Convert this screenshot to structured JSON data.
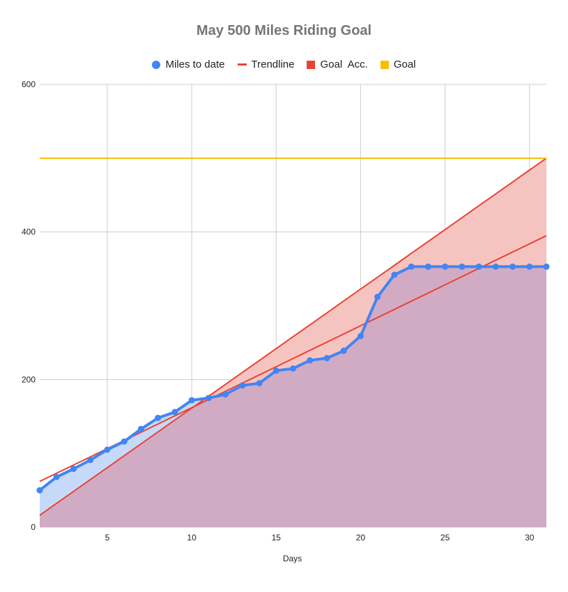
{
  "chart_data": {
    "type": "line",
    "title": "May 500 Miles Riding Goal",
    "xlabel": "Days",
    "ylabel": "",
    "xlim": [
      1,
      31
    ],
    "ylim": [
      0,
      600
    ],
    "x_ticks": [
      5,
      10,
      15,
      20,
      25,
      30
    ],
    "y_ticks": [
      0,
      200,
      400,
      600
    ],
    "grid": true,
    "legend_position": "top",
    "x": [
      1,
      2,
      3,
      4,
      5,
      6,
      7,
      8,
      9,
      10,
      11,
      12,
      13,
      14,
      15,
      16,
      17,
      18,
      19,
      20,
      21,
      22,
      23,
      24,
      25,
      26,
      27,
      28,
      29,
      30,
      31
    ],
    "series": [
      {
        "name": "Miles to date",
        "kind": "line-with-markers-area",
        "color": "#4285f4",
        "fill_color": "#c6d9f9",
        "values": [
          50,
          68,
          79,
          91,
          105,
          116,
          133,
          148,
          156,
          172,
          175,
          180,
          192,
          195,
          212,
          215,
          226,
          229,
          239,
          259,
          312,
          342,
          353,
          353,
          353,
          353,
          353,
          353,
          353,
          353,
          353
        ]
      },
      {
        "name": "Trendline",
        "kind": "linear-trendline",
        "color": "#ea4335",
        "start": [
          1,
          62
        ],
        "end": [
          31,
          395
        ]
      },
      {
        "name": "Goal  Acc.",
        "kind": "area",
        "color": "#ea4335",
        "fill_color": "#f6c4c0",
        "values": [
          16.1,
          32.3,
          48.4,
          64.5,
          80.6,
          96.8,
          112.9,
          129.0,
          145.2,
          161.3,
          177.4,
          193.5,
          209.7,
          225.8,
          241.9,
          258.1,
          274.2,
          290.3,
          306.5,
          322.6,
          338.7,
          354.8,
          371.0,
          387.1,
          403.2,
          419.4,
          435.5,
          451.6,
          467.7,
          483.9,
          500
        ]
      },
      {
        "name": "Goal",
        "kind": "line",
        "color": "#fbbc04",
        "values": [
          500,
          500,
          500,
          500,
          500,
          500,
          500,
          500,
          500,
          500,
          500,
          500,
          500,
          500,
          500,
          500,
          500,
          500,
          500,
          500,
          500,
          500,
          500,
          500,
          500,
          500,
          500,
          500,
          500,
          500,
          500
        ]
      }
    ],
    "overlap_color": "#d1abc4",
    "grid_color": "#cccccc"
  }
}
